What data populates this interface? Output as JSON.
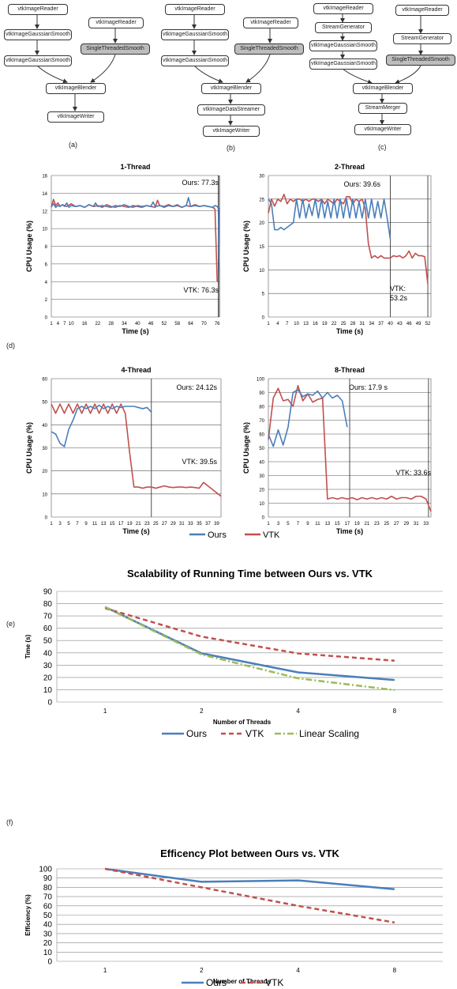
{
  "pipelines": {
    "a": {
      "label": "(a)",
      "nodes": {
        "reader1": "vtkImageReader",
        "gauss1": "vtkImageGaussianSmooth",
        "gauss2": "vtkImageGaussianSmooth",
        "reader2": "vtkImageReader",
        "single": "SingleThreadedSmooth",
        "blender": "vtkImageBlender",
        "writer": "vtkImageWriter"
      }
    },
    "b": {
      "label": "(b)",
      "nodes": {
        "reader1": "vtkImageReader",
        "gauss1": "vtkImageGaussianSmooth",
        "gauss2": "vtkImageGaussianSmooth",
        "reader2": "vtkImageReader",
        "single": "SingleThreadedSmooth",
        "blender": "vtkImageBlender",
        "streamer": "vtkImageDataStreamer",
        "writer": "vtkImageWriter"
      }
    },
    "c": {
      "label": "(c)",
      "nodes": {
        "reader1": "vtkImageReader",
        "gen1": "StreamGenerator",
        "gauss1": "vtkImageGaussianSmooth",
        "gauss2": "vtkImageGaussianSmooth",
        "reader2": "vtkImageReader",
        "gen2": "StreamGenerator",
        "single": "SingleThreadedSmooth",
        "blender": "vtkImageBlender",
        "merger": "StreamMerger",
        "writer": "vtkImageWriter"
      }
    }
  },
  "panel_labels": {
    "d": "(d)",
    "e": "(e)",
    "f": "(f)"
  },
  "chart_data": [
    {
      "type": "line",
      "title": "1-Thread",
      "xlabel": "Time (s)",
      "ylabel": "CPU Usage (%)",
      "ylim": [
        0,
        16
      ],
      "yticks": [
        0,
        2,
        4,
        6,
        8,
        10,
        12,
        14,
        16
      ],
      "xlim": [
        1,
        77
      ],
      "xticks": [
        "1",
        "4",
        "7",
        "10",
        "16",
        "22",
        "28",
        "34",
        "40",
        "46",
        "52",
        "58",
        "64",
        "70",
        "76"
      ],
      "annotations": [
        "Ours: 77.3s",
        "VTK: 76.3s"
      ],
      "series": [
        {
          "name": "Ours",
          "color": "#4a7ebb",
          "x": [
            1,
            2,
            3,
            4,
            5,
            6,
            7,
            8,
            9,
            10,
            12,
            14,
            16,
            18,
            20,
            21,
            22,
            24,
            26,
            28,
            30,
            32,
            34,
            36,
            38,
            40,
            42,
            44,
            46,
            47,
            48,
            50,
            52,
            54,
            56,
            58,
            60,
            62,
            63,
            64,
            66,
            68,
            70,
            72,
            74,
            75,
            76,
            76.5,
            77
          ],
          "y": [
            12.5,
            12.8,
            12.4,
            12.6,
            12.5,
            12.7,
            12.5,
            12.9,
            12.4,
            12.6,
            12.5,
            12.6,
            12.4,
            12.7,
            12.5,
            12.9,
            12.5,
            12.6,
            12.5,
            12.4,
            12.6,
            12.5,
            12.7,
            12.5,
            12.4,
            12.6,
            12.5,
            12.6,
            12.5,
            13.0,
            12.5,
            12.6,
            12.4,
            12.6,
            12.5,
            12.7,
            12.4,
            12.6,
            13.5,
            12.5,
            12.6,
            12.5,
            12.6,
            12.5,
            12.4,
            12.6,
            12.5,
            12.3,
            5.0
          ]
        },
        {
          "name": "VTK",
          "color": "#c0504d",
          "x": [
            1,
            2,
            3,
            4,
            5,
            6,
            8,
            10,
            12,
            14,
            16,
            18,
            20,
            22,
            24,
            26,
            28,
            30,
            32,
            34,
            36,
            38,
            40,
            42,
            44,
            46,
            48,
            49,
            50,
            52,
            54,
            56,
            58,
            60,
            62,
            64,
            66,
            68,
            70,
            72,
            74,
            75,
            76
          ],
          "y": [
            12.4,
            13.3,
            12.6,
            12.9,
            12.5,
            12.7,
            12.5,
            12.8,
            12.5,
            12.6,
            12.4,
            12.7,
            12.5,
            12.6,
            12.4,
            12.7,
            12.5,
            12.4,
            12.6,
            12.5,
            12.4,
            12.6,
            12.5,
            12.4,
            12.6,
            12.5,
            12.4,
            13.2,
            12.6,
            12.5,
            12.7,
            12.5,
            12.6,
            12.4,
            12.6,
            12.5,
            12.7,
            12.5,
            12.6,
            12.5,
            12.4,
            12.2,
            4.0
          ]
        }
      ]
    },
    {
      "type": "line",
      "title": "2-Thread",
      "xlabel": "Time (s)",
      "ylabel": "CPU Usage (%)",
      "ylim": [
        0,
        30
      ],
      "yticks": [
        0,
        5,
        10,
        15,
        20,
        25,
        30
      ],
      "xlim": [
        1,
        53
      ],
      "xticks": [
        "1",
        "4",
        "7",
        "10",
        "13",
        "16",
        "19",
        "22",
        "25",
        "28",
        "31",
        "34",
        "37",
        "40",
        "43",
        "46",
        "49",
        "52"
      ],
      "annotations": [
        "Ours: 39.6s",
        "VTK:",
        "53.2s"
      ],
      "series": [
        {
          "name": "Ours",
          "color": "#4a7ebb",
          "x": [
            1,
            2,
            3,
            4,
            5,
            6,
            7,
            8,
            9,
            10,
            11,
            12,
            13,
            14,
            15,
            16,
            17,
            18,
            19,
            20,
            21,
            22,
            23,
            24,
            25,
            26,
            27,
            28,
            29,
            30,
            31,
            32,
            33,
            34,
            35,
            36,
            37,
            38,
            39,
            40
          ],
          "y": [
            25,
            24,
            18.5,
            18.5,
            19,
            18.5,
            19,
            19.5,
            20,
            25,
            21,
            25,
            21,
            24,
            21.5,
            25,
            21,
            25,
            21,
            24.5,
            21,
            25,
            21,
            25,
            21,
            25,
            21,
            25,
            21,
            24.5,
            21,
            25,
            21,
            25,
            21,
            24.5,
            21,
            25,
            21,
            16.5
          ]
        },
        {
          "name": "VTK",
          "color": "#c0504d",
          "x": [
            1,
            2,
            3,
            4,
            5,
            6,
            7,
            8,
            9,
            10,
            11,
            12,
            13,
            14,
            15,
            16,
            17,
            18,
            19,
            20,
            21,
            22,
            23,
            24,
            25,
            26,
            27,
            28,
            29,
            30,
            31,
            32,
            33,
            34,
            35,
            36,
            37,
            38,
            39,
            40,
            41,
            42,
            43,
            44,
            45,
            46,
            47,
            48,
            49,
            50,
            51,
            52
          ],
          "y": [
            22,
            25,
            23.5,
            25,
            24.5,
            26,
            24,
            25,
            24.5,
            25,
            25,
            24.5,
            25,
            24.5,
            25,
            25,
            24.5,
            25,
            24,
            25,
            24.5,
            24,
            25,
            24.5,
            24,
            25.5,
            25.5,
            24,
            25,
            24.5,
            25,
            23,
            15.5,
            12.5,
            13,
            12.5,
            13,
            12.5,
            12.5,
            12.5,
            13,
            12.8,
            13,
            12.5,
            13,
            14,
            12.5,
            13.5,
            13,
            13,
            12.8,
            7
          ]
        }
      ]
    },
    {
      "type": "line",
      "title": "4-Thread",
      "xlabel": "Time (s)",
      "ylabel": "CPU Usage (%)",
      "ylim": [
        0,
        60
      ],
      "yticks": [
        0,
        10,
        20,
        30,
        40,
        50,
        60
      ],
      "xlim": [
        1,
        40
      ],
      "xticks": [
        "1",
        "3",
        "5",
        "7",
        "9",
        "11",
        "13",
        "15",
        "17",
        "19",
        "21",
        "23",
        "25",
        "27",
        "29",
        "31",
        "33",
        "35",
        "37",
        "39"
      ],
      "annotations": [
        "Ours: 24.12s",
        "VTK: 39.5s"
      ],
      "series": [
        {
          "name": "Ours",
          "color": "#4a7ebb",
          "x": [
            1,
            2,
            3,
            4,
            5,
            6,
            7,
            8,
            9,
            10,
            11,
            12,
            13,
            14,
            15,
            16,
            17,
            18,
            19,
            20,
            21,
            22,
            23,
            24
          ],
          "y": [
            37,
            36,
            32,
            30.5,
            38,
            42,
            47,
            48,
            47,
            48,
            47,
            48.5,
            47,
            48,
            47,
            48,
            47.5,
            48,
            48,
            48,
            47.5,
            47,
            47.5,
            45.5
          ]
        },
        {
          "name": "VTK",
          "color": "#c0504d",
          "x": [
            1,
            2,
            3,
            4,
            5,
            6,
            7,
            8,
            9,
            10,
            11,
            12,
            13,
            14,
            15,
            16,
            17,
            18,
            19,
            20,
            21,
            22,
            23,
            24,
            25,
            26,
            27,
            28,
            29,
            30,
            31,
            32,
            33,
            34,
            35,
            36,
            37,
            38,
            39,
            40
          ],
          "y": [
            49,
            45,
            49,
            45,
            49,
            45,
            49,
            45,
            49,
            45,
            49,
            45,
            49,
            45,
            49,
            45,
            49,
            45,
            28,
            13,
            13,
            12.5,
            13,
            13,
            12.5,
            13,
            13.5,
            13,
            12.8,
            13,
            13,
            12.8,
            13,
            12.8,
            12.5,
            15,
            13.5,
            12,
            10.5,
            9
          ]
        }
      ]
    },
    {
      "type": "line",
      "title": "8-Thread",
      "xlabel": "Time (s)",
      "ylabel": "CPU Usage (%)",
      "ylim": [
        0,
        100
      ],
      "yticks": [
        0,
        10,
        20,
        30,
        40,
        50,
        60,
        70,
        80,
        90,
        100
      ],
      "xlim": [
        1,
        34
      ],
      "xticks": [
        "1",
        "3",
        "5",
        "7",
        "9",
        "11",
        "13",
        "15",
        "17",
        "19",
        "21",
        "23",
        "25",
        "27",
        "29",
        "31",
        "33"
      ],
      "annotations": [
        "Ours: 17.9 s",
        "VTK: 33.6s"
      ],
      "series": [
        {
          "name": "Ours",
          "color": "#4a7ebb",
          "x": [
            1,
            2,
            3,
            4,
            5,
            6,
            7,
            8,
            9,
            10,
            11,
            12,
            13,
            14,
            15,
            16,
            17
          ],
          "y": [
            60,
            51,
            63,
            52,
            65,
            90,
            92,
            87,
            89,
            88,
            91,
            86,
            90,
            86,
            88,
            84,
            65
          ]
        },
        {
          "name": "VTK",
          "color": "#c0504d",
          "x": [
            1,
            2,
            3,
            4,
            5,
            6,
            7,
            8,
            9,
            10,
            11,
            12,
            13,
            14,
            15,
            16,
            17,
            18,
            19,
            20,
            21,
            22,
            23,
            24,
            25,
            26,
            27,
            28,
            29,
            30,
            31,
            32,
            33,
            34
          ],
          "y": [
            56,
            86,
            93,
            84,
            85,
            80,
            95,
            84,
            89,
            83,
            85,
            86,
            13,
            14,
            13,
            14,
            13,
            14,
            12.5,
            14,
            13,
            14,
            13,
            14,
            13,
            15,
            13,
            14,
            14,
            13,
            15,
            15,
            13,
            4
          ]
        }
      ]
    },
    {
      "type": "line",
      "title": "Scalability of Running Time between Ours vs. VTK",
      "xlabel": "Number of Threads",
      "ylabel": "Time (s)",
      "categories": [
        "1",
        "2",
        "4",
        "8"
      ],
      "ylim": [
        0,
        90
      ],
      "yticks": [
        0,
        10,
        20,
        30,
        40,
        50,
        60,
        70,
        80,
        90
      ],
      "series": [
        {
          "name": "Ours",
          "color": "#4a7ebb",
          "style": "solid",
          "values": [
            77.3,
            39.6,
            24.12,
            17.9
          ]
        },
        {
          "name": "VTK",
          "color": "#c0504d",
          "style": "dash",
          "values": [
            76.3,
            53.2,
            39.5,
            33.6
          ]
        },
        {
          "name": "Linear Scaling",
          "color": "#9bbb59",
          "style": "dashdot",
          "values": [
            77.3,
            38.65,
            19.3,
            9.7
          ]
        }
      ]
    },
    {
      "type": "line",
      "title": "Efficency Plot between Ours vs. VTK",
      "xlabel": "Number of Threads",
      "ylabel": "Efficiency (%)",
      "categories": [
        "1",
        "2",
        "4",
        "8"
      ],
      "ylim": [
        0,
        100
      ],
      "yticks": [
        0,
        10,
        20,
        30,
        40,
        50,
        60,
        70,
        80,
        90,
        100
      ],
      "series": [
        {
          "name": "Ours",
          "color": "#4a7ebb",
          "style": "solid",
          "values": [
            100,
            86,
            87.5,
            78
          ]
        },
        {
          "name": "VTK",
          "color": "#c0504d",
          "style": "dash",
          "values": [
            100,
            80,
            60,
            42
          ]
        }
      ]
    }
  ],
  "legend_small": {
    "ours": "Ours",
    "vtk": "VTK"
  }
}
